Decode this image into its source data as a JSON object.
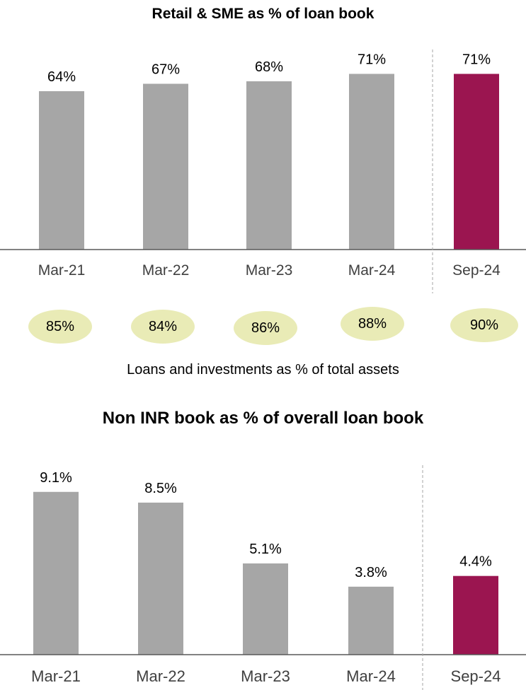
{
  "colors": {
    "bar": "#a6a6a6",
    "highlight": "#9b1550",
    "axis": "#595959",
    "divider": "#a6a6a6",
    "oval": "#e9ebb6"
  },
  "chart_data": [
    {
      "type": "bar",
      "title": "Retail & SME as % of loan book",
      "categories": [
        "Mar-21",
        "Mar-22",
        "Mar-23",
        "Mar-24",
        "Sep-24"
      ],
      "values": [
        64,
        67,
        68,
        71,
        71
      ],
      "labels": [
        "64%",
        "67%",
        "68%",
        "71%",
        "71%"
      ],
      "highlight_index": 4,
      "ylim": [
        0,
        80
      ],
      "grid": false
    },
    {
      "type": "bar",
      "title": "Non INR book as % of overall loan book",
      "categories": [
        "Mar-21",
        "Mar-22",
        "Mar-23",
        "Mar-24",
        "Sep-24"
      ],
      "values": [
        9.1,
        8.5,
        5.1,
        3.8,
        4.4
      ],
      "labels": [
        "9.1%",
        "8.5%",
        "5.1%",
        "3.8%",
        "4.4%"
      ],
      "highlight_index": 4,
      "ylim": [
        0,
        10
      ],
      "grid": false
    }
  ],
  "loans_investments": {
    "caption": "Loans and investments as % of total assets",
    "values": [
      "85%",
      "84%",
      "86%",
      "88%",
      "90%"
    ]
  }
}
